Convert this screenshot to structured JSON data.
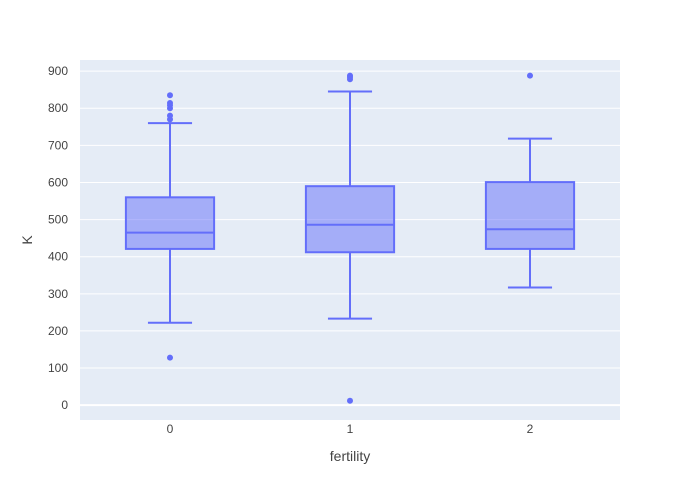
{
  "chart_data": {
    "type": "box",
    "title": "",
    "xlabel": "fertility",
    "ylabel": "K",
    "ylim": [
      -40,
      930
    ],
    "yticks": [
      0,
      100,
      200,
      300,
      400,
      500,
      600,
      700,
      800,
      900
    ],
    "ytick_labels": [
      "0",
      "100",
      "200",
      "300",
      "400",
      "500",
      "600",
      "700",
      "800",
      "900"
    ],
    "grid": true,
    "colors": {
      "plot_bg": "#E5ECF6",
      "grid": "#FFFFFF",
      "box_line": "#636EFA",
      "box_fill": "rgba(99,110,250,0.5)"
    },
    "categories": [
      "0",
      "1",
      "2"
    ],
    "boxes": [
      {
        "category": "0",
        "lower_whisker": 222,
        "q1": 421,
        "median": 465,
        "q3": 560,
        "upper_whisker": 760,
        "outliers": [
          128,
          770,
          780,
          800,
          808,
          814,
          835
        ]
      },
      {
        "category": "1",
        "lower_whisker": 233,
        "q1": 412,
        "median": 486,
        "q3": 590,
        "upper_whisker": 845,
        "outliers": [
          12,
          878,
          884,
          888
        ]
      },
      {
        "category": "2",
        "lower_whisker": 317,
        "q1": 421,
        "median": 474,
        "q3": 601,
        "upper_whisker": 718,
        "outliers": [
          888
        ]
      }
    ]
  }
}
